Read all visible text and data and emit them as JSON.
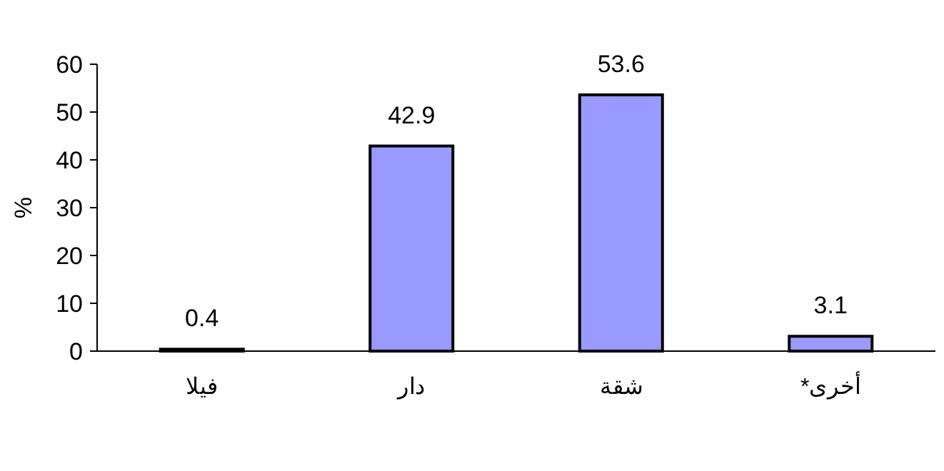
{
  "chart_data": {
    "type": "bar",
    "ylabel": "%",
    "categories": [
      "فيلا",
      "دار",
      "شقة",
      "أخرى*"
    ],
    "values": [
      0.4,
      42.9,
      53.6,
      3.1
    ],
    "color": "#9999ff",
    "ylim": [
      0,
      60
    ],
    "yticks": [
      0,
      10,
      20,
      30,
      40,
      50,
      60
    ],
    "data_labels": true,
    "grid": false
  }
}
